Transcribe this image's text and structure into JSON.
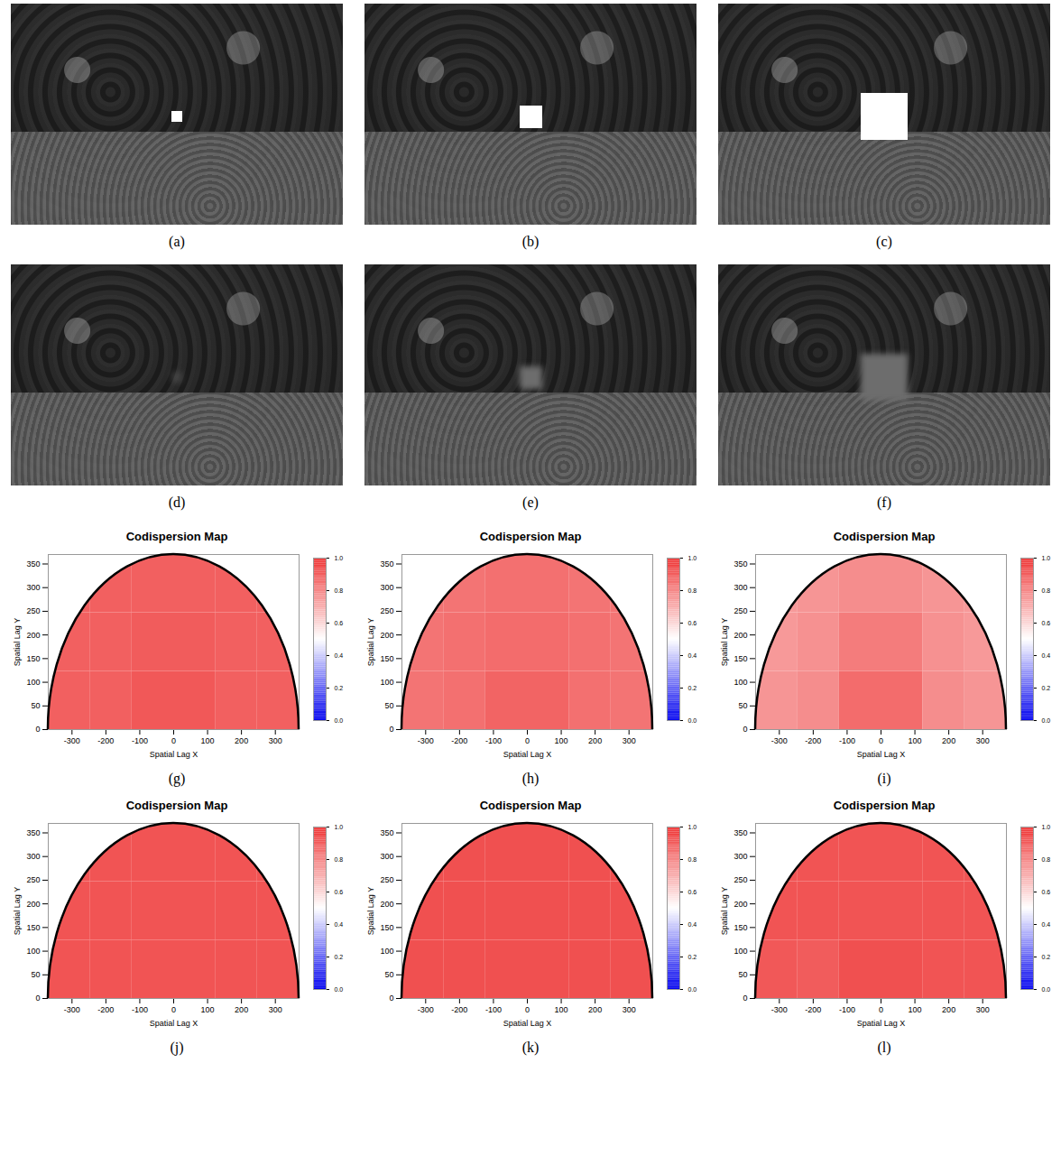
{
  "image_panels": [
    {
      "label": "(a)",
      "type": "image"
    },
    {
      "label": "(b)",
      "type": "image"
    },
    {
      "label": "(c)",
      "type": "image"
    },
    {
      "label": "(d)",
      "type": "image"
    },
    {
      "label": "(e)",
      "type": "image"
    },
    {
      "label": "(f)",
      "type": "image"
    }
  ],
  "chart_data": [
    {
      "type": "heatmap",
      "label": "(g)",
      "title": "Codispersion Map",
      "xlabel": "Spatial Lag X",
      "ylabel": "Spatial Lag Y",
      "xlim": [
        -370,
        370
      ],
      "ylim": [
        0,
        370
      ],
      "xticks": [
        -300,
        -200,
        -100,
        0,
        100,
        200,
        300
      ],
      "yticks": [
        0,
        50,
        100,
        150,
        200,
        250,
        300,
        350
      ],
      "x_bins": [
        -370,
        -247,
        -123,
        0,
        123,
        247,
        370
      ],
      "y_bins": [
        0,
        123,
        247,
        370
      ],
      "cells": [
        [
          0.89,
          0.89,
          0.91,
          0.91,
          0.89,
          0.89
        ],
        [
          0.89,
          0.89,
          0.9,
          0.9,
          0.89,
          0.89
        ],
        [
          0.89,
          0.89,
          0.89,
          0.89,
          0.89,
          0.89
        ]
      ],
      "colorbar": {
        "range": [
          0,
          1
        ],
        "ticks": [
          {
            "value": 0,
            "label": "0.0"
          },
          {
            "value": 0.2,
            "label": "0.2"
          },
          {
            "value": 0.4,
            "label": "0.4"
          },
          {
            "value": 0.6,
            "label": "0.6"
          },
          {
            "value": 0.8,
            "label": "0.8"
          },
          {
            "value": 1,
            "label": "1.0"
          }
        ],
        "colors": [
          "#0000ee",
          "#ffffff",
          "#ee3333"
        ]
      }
    },
    {
      "type": "heatmap",
      "label": "(h)",
      "title": "Codispersion Map",
      "xlabel": "Spatial Lag X",
      "ylabel": "Spatial Lag Y",
      "xlim": [
        -370,
        370
      ],
      "ylim": [
        0,
        370
      ],
      "xticks": [
        -300,
        -200,
        -100,
        0,
        100,
        200,
        300
      ],
      "yticks": [
        0,
        50,
        100,
        150,
        200,
        250,
        300,
        350
      ],
      "x_bins": [
        -370,
        -247,
        -123,
        0,
        123,
        247,
        370
      ],
      "y_bins": [
        0,
        123,
        247,
        370
      ],
      "cells": [
        [
          0.84,
          0.85,
          0.88,
          0.88,
          0.85,
          0.84
        ],
        [
          0.84,
          0.85,
          0.86,
          0.86,
          0.85,
          0.84
        ],
        [
          0.84,
          0.84,
          0.85,
          0.85,
          0.84,
          0.84
        ]
      ],
      "colorbar": {
        "range": [
          0,
          1
        ],
        "ticks": [
          {
            "value": 0,
            "label": "0.0"
          },
          {
            "value": 0.2,
            "label": "0.2"
          },
          {
            "value": 0.4,
            "label": "0.4"
          },
          {
            "value": 0.6,
            "label": "0.6"
          },
          {
            "value": 0.8,
            "label": "0.8"
          },
          {
            "value": 1,
            "label": "1.0"
          }
        ],
        "colors": [
          "#0000ee",
          "#ffffff",
          "#ee3333"
        ]
      }
    },
    {
      "type": "heatmap",
      "label": "(i)",
      "title": "Codispersion Map",
      "xlabel": "Spatial Lag X",
      "ylabel": "Spatial Lag Y",
      "xlim": [
        -370,
        370
      ],
      "ylim": [
        0,
        370
      ],
      "xticks": [
        -300,
        -200,
        -100,
        0,
        100,
        200,
        300
      ],
      "yticks": [
        0,
        50,
        100,
        150,
        200,
        250,
        300,
        350
      ],
      "x_bins": [
        -370,
        -247,
        -123,
        0,
        123,
        247,
        370
      ],
      "y_bins": [
        0,
        123,
        247,
        370
      ],
      "cells": [
        [
          0.76,
          0.78,
          0.86,
          0.86,
          0.78,
          0.76
        ],
        [
          0.75,
          0.77,
          0.82,
          0.82,
          0.77,
          0.75
        ],
        [
          0.75,
          0.76,
          0.78,
          0.78,
          0.76,
          0.75
        ]
      ],
      "colorbar": {
        "range": [
          0,
          1
        ],
        "ticks": [
          {
            "value": 0,
            "label": "0.0"
          },
          {
            "value": 0.2,
            "label": "0.2"
          },
          {
            "value": 0.4,
            "label": "0.4"
          },
          {
            "value": 0.6,
            "label": "0.6"
          },
          {
            "value": 0.8,
            "label": "0.8"
          },
          {
            "value": 1,
            "label": "1.0"
          }
        ],
        "colors": [
          "#0000ee",
          "#ffffff",
          "#ee3333"
        ]
      }
    },
    {
      "type": "heatmap",
      "label": "(j)",
      "title": "Codispersion Map",
      "xlabel": "Spatial Lag X",
      "ylabel": "Spatial Lag Y",
      "xlim": [
        -370,
        370
      ],
      "ylim": [
        0,
        370
      ],
      "xticks": [
        -300,
        -200,
        -100,
        0,
        100,
        200,
        300
      ],
      "yticks": [
        0,
        50,
        100,
        150,
        200,
        250,
        300,
        350
      ],
      "x_bins": [
        -370,
        -247,
        -123,
        0,
        123,
        247,
        370
      ],
      "y_bins": [
        0,
        123,
        247,
        370
      ],
      "cells": [
        [
          0.92,
          0.92,
          0.92,
          0.92,
          0.92,
          0.92
        ],
        [
          0.92,
          0.92,
          0.92,
          0.92,
          0.92,
          0.92
        ],
        [
          0.92,
          0.92,
          0.92,
          0.92,
          0.92,
          0.92
        ]
      ],
      "colorbar": {
        "range": [
          0,
          1
        ],
        "ticks": [
          {
            "value": 0,
            "label": "0.0"
          },
          {
            "value": 0.2,
            "label": "0.2"
          },
          {
            "value": 0.4,
            "label": "0.4"
          },
          {
            "value": 0.6,
            "label": "0.6"
          },
          {
            "value": 0.8,
            "label": "0.8"
          },
          {
            "value": 1,
            "label": "1.0"
          }
        ],
        "colors": [
          "#0000ee",
          "#ffffff",
          "#ee3333"
        ]
      }
    },
    {
      "type": "heatmap",
      "label": "(k)",
      "title": "Codispersion Map",
      "xlabel": "Spatial Lag X",
      "ylabel": "Spatial Lag Y",
      "xlim": [
        -370,
        370
      ],
      "ylim": [
        0,
        370
      ],
      "xticks": [
        -300,
        -200,
        -100,
        0,
        100,
        200,
        300
      ],
      "yticks": [
        0,
        50,
        100,
        150,
        200,
        250,
        300,
        350
      ],
      "x_bins": [
        -370,
        -247,
        -123,
        0,
        123,
        247,
        370
      ],
      "y_bins": [
        0,
        123,
        247,
        370
      ],
      "cells": [
        [
          0.93,
          0.93,
          0.93,
          0.93,
          0.93,
          0.93
        ],
        [
          0.93,
          0.93,
          0.93,
          0.93,
          0.93,
          0.93
        ],
        [
          0.93,
          0.93,
          0.93,
          0.93,
          0.93,
          0.93
        ]
      ],
      "colorbar": {
        "range": [
          0,
          1
        ],
        "ticks": [
          {
            "value": 0,
            "label": "0.0"
          },
          {
            "value": 0.2,
            "label": "0.2"
          },
          {
            "value": 0.4,
            "label": "0.4"
          },
          {
            "value": 0.6,
            "label": "0.6"
          },
          {
            "value": 0.8,
            "label": "0.8"
          },
          {
            "value": 1,
            "label": "1.0"
          }
        ],
        "colors": [
          "#0000ee",
          "#ffffff",
          "#ee3333"
        ]
      }
    },
    {
      "type": "heatmap",
      "label": "(l)",
      "title": "Codispersion Map",
      "xlabel": "Spatial Lag X",
      "ylabel": "Spatial Lag Y",
      "xlim": [
        -370,
        370
      ],
      "ylim": [
        0,
        370
      ],
      "xticks": [
        -300,
        -200,
        -100,
        0,
        100,
        200,
        300
      ],
      "yticks": [
        0,
        50,
        100,
        150,
        200,
        250,
        300,
        350
      ],
      "x_bins": [
        -370,
        -247,
        -123,
        0,
        123,
        247,
        370
      ],
      "y_bins": [
        0,
        123,
        247,
        370
      ],
      "cells": [
        [
          0.91,
          0.9,
          0.93,
          0.93,
          0.92,
          0.92
        ],
        [
          0.92,
          0.92,
          0.92,
          0.92,
          0.92,
          0.92
        ],
        [
          0.92,
          0.92,
          0.92,
          0.92,
          0.92,
          0.92
        ]
      ],
      "colorbar": {
        "range": [
          0,
          1
        ],
        "ticks": [
          {
            "value": 0,
            "label": "0.0"
          },
          {
            "value": 0.2,
            "label": "0.2"
          },
          {
            "value": 0.4,
            "label": "0.4"
          },
          {
            "value": 0.6,
            "label": "0.6"
          },
          {
            "value": 0.8,
            "label": "0.8"
          },
          {
            "value": 1,
            "label": "1.0"
          }
        ],
        "colors": [
          "#0000ee",
          "#ffffff",
          "#ee3333"
        ]
      }
    }
  ]
}
